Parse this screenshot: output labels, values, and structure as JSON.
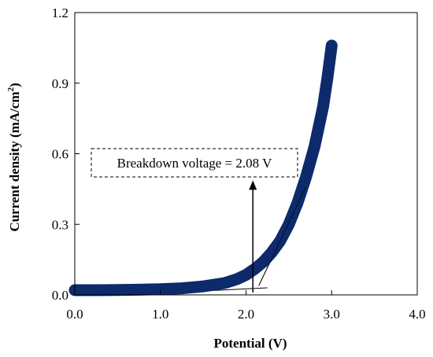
{
  "chart_data": {
    "type": "line",
    "title": "",
    "xlabel": "Potential (V)",
    "ylabel_main": "Current density (mA/cm",
    "ylabel_sup": "2",
    "ylabel_close": ")",
    "xlim": [
      0,
      4
    ],
    "ylim": [
      0,
      1.2
    ],
    "x_ticks": [
      "0.0",
      "1.0",
      "2.0",
      "3.0",
      "4.0"
    ],
    "y_ticks": [
      "0.0",
      "0.3",
      "0.6",
      "0.9",
      "1.2"
    ],
    "grid": false,
    "colors": {
      "series": "#0d2a6b",
      "axis": "#000000"
    },
    "series": [
      {
        "x": [
          0.0,
          0.25,
          0.5,
          0.75,
          1.0,
          1.25,
          1.5,
          1.75,
          1.9,
          2.0,
          2.1,
          2.2,
          2.3,
          2.4,
          2.5,
          2.6,
          2.7,
          2.8,
          2.9,
          2.95,
          3.0
        ],
        "y": [
          0.02,
          0.02,
          0.021,
          0.022,
          0.024,
          0.028,
          0.036,
          0.05,
          0.068,
          0.085,
          0.11,
          0.14,
          0.18,
          0.23,
          0.3,
          0.39,
          0.5,
          0.63,
          0.8,
          0.92,
          1.06
        ]
      }
    ],
    "tangent_lines": [
      {
        "x": [
          0.6,
          2.25
        ],
        "y": [
          0.0,
          0.03
        ]
      },
      {
        "x": [
          2.15,
          2.7
        ],
        "y": [
          0.04,
          0.46
        ]
      }
    ],
    "annotation": {
      "text": "Breakdown voltage = 2.08 V",
      "arrow_x": 2.08,
      "arrow_from_y": 0.01,
      "arrow_to_y": 0.46
    }
  }
}
